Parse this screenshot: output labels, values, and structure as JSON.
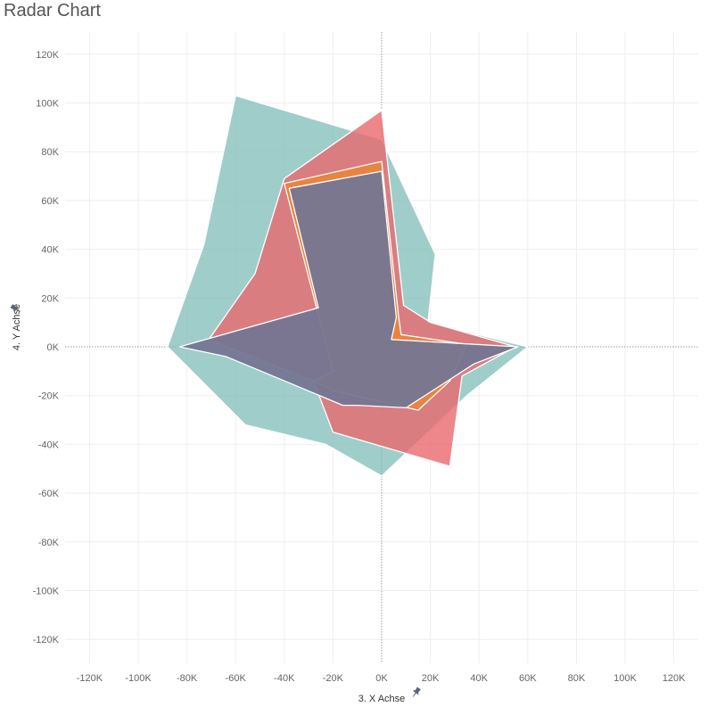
{
  "chart_data": {
    "type": "area",
    "title": "Radar Chart",
    "xlabel": "3. X Achse",
    "ylabel": "4. Y Achse",
    "xlim": [
      -130000,
      130000
    ],
    "ylim": [
      -130000,
      120000
    ],
    "x_ticks": [
      -120000,
      -100000,
      -80000,
      -60000,
      -40000,
      -20000,
      0,
      20000,
      40000,
      60000,
      80000,
      100000,
      120000
    ],
    "x_tick_labels": [
      "-120K",
      "-100K",
      "-80K",
      "-60K",
      "-40K",
      "-20K",
      "0K",
      "20K",
      "40K",
      "60K",
      "80K",
      "100K",
      "120K"
    ],
    "y_ticks": [
      120000,
      100000,
      80000,
      60000,
      40000,
      20000,
      0,
      -20000,
      -40000,
      -60000,
      -80000,
      -100000,
      -120000
    ],
    "y_tick_labels": [
      "120K",
      "100K",
      "80K",
      "60K",
      "40K",
      "20K",
      "0K",
      "-20K",
      "-40K",
      "-60K",
      "-80K",
      "-100K",
      "-120K"
    ],
    "grid": true,
    "zero_lines": true,
    "series": [
      {
        "color": "#7fbdb8",
        "opacity": 0.75,
        "points": [
          [
            0,
            85000
          ],
          [
            22000,
            38000
          ],
          [
            19000,
            10000
          ],
          [
            60000,
            0
          ],
          [
            35000,
            -20000
          ],
          [
            0,
            -53000
          ],
          [
            -23000,
            -40000
          ],
          [
            -56000,
            -32000
          ],
          [
            -88000,
            0
          ],
          [
            -73000,
            42000
          ],
          [
            -60000,
            103000
          ],
          [
            0,
            85000
          ]
        ]
      },
      {
        "color": "#e8696e",
        "opacity": 0.8,
        "points": [
          [
            0,
            97000
          ],
          [
            9000,
            17000
          ],
          [
            20000,
            10000
          ],
          [
            55000,
            0
          ],
          [
            33000,
            -12000
          ],
          [
            28000,
            -49000
          ],
          [
            -20000,
            -35000
          ],
          [
            -28000,
            -14000
          ],
          [
            -71000,
            3000
          ],
          [
            -52000,
            30000
          ],
          [
            -40000,
            69000
          ],
          [
            0,
            97000
          ]
        ]
      },
      {
        "color": "#e8853d",
        "opacity": 0.95,
        "points": [
          [
            0,
            76000
          ],
          [
            7000,
            12000
          ],
          [
            8000,
            5000
          ],
          [
            35000,
            1000
          ],
          [
            28000,
            -14000
          ],
          [
            15000,
            -26000
          ],
          [
            -20000,
            -18000
          ],
          [
            -28000,
            -14000
          ],
          [
            -20000,
            -10000
          ],
          [
            -40000,
            67000
          ],
          [
            0,
            76000
          ]
        ]
      },
      {
        "color": "#757692",
        "opacity": 0.95,
        "points": [
          [
            0,
            72000
          ],
          [
            6000,
            12000
          ],
          [
            4000,
            3000
          ],
          [
            56000,
            0
          ],
          [
            38000,
            -7000
          ],
          [
            10000,
            -25000
          ],
          [
            -10000,
            -24000
          ],
          [
            -16000,
            -24000
          ],
          [
            -35000,
            -16000
          ],
          [
            -64000,
            -4000
          ],
          [
            -83000,
            0
          ],
          [
            -26000,
            16000
          ],
          [
            -38000,
            65000
          ],
          [
            0,
            72000
          ]
        ]
      }
    ]
  }
}
